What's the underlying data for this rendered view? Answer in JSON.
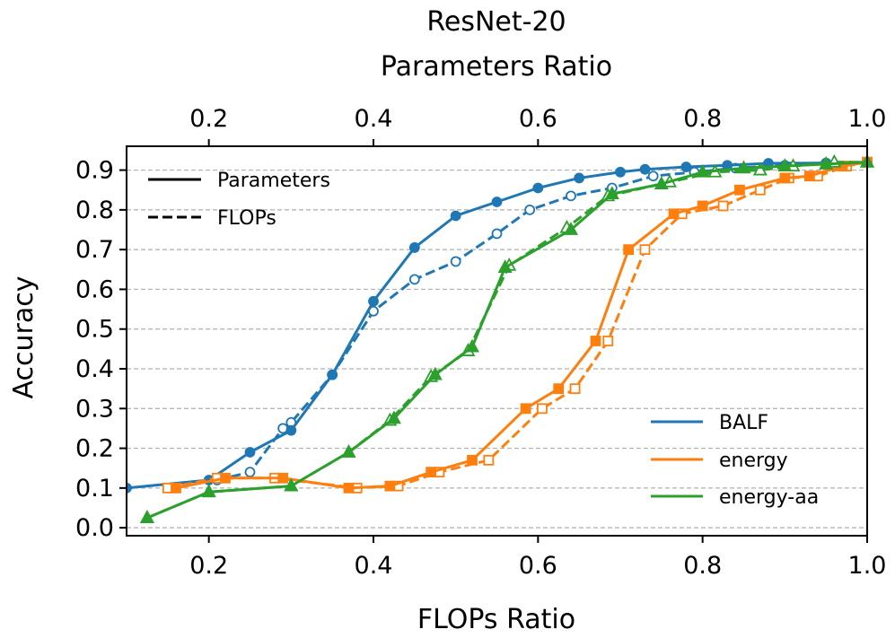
{
  "chart_data": {
    "type": "line",
    "title": "ResNet-20",
    "xlabel": "FLOPs Ratio",
    "x2label": "Parameters Ratio",
    "ylabel": "Accuracy",
    "xlim": [
      0.1,
      1.0
    ],
    "ylim": [
      -0.02,
      0.96
    ],
    "xticks": [
      "0.2",
      "0.4",
      "0.6",
      "0.8",
      "1.0"
    ],
    "x2ticks": [
      "0.2",
      "0.4",
      "0.6",
      "0.8",
      "1.0"
    ],
    "yticks": [
      "0.0",
      "0.1",
      "0.2",
      "0.3",
      "0.4",
      "0.5",
      "0.6",
      "0.7",
      "0.8",
      "0.9"
    ],
    "grid": "horizontal dashed",
    "style_legend": {
      "solid": "Parameters",
      "dashed": "FLOPs",
      "placement": "top-left"
    },
    "series_legend_placement": "bottom-right",
    "series": [
      {
        "name": "BALF",
        "color": "#1f77b4",
        "marker": "circle",
        "parameters": {
          "x": [
            0.1,
            0.2,
            0.25,
            0.3,
            0.35,
            0.4,
            0.45,
            0.5,
            0.55,
            0.6,
            0.65,
            0.7,
            0.73,
            0.78,
            0.83,
            0.88,
            0.95,
            1.0
          ],
          "y": [
            0.1,
            0.12,
            0.19,
            0.245,
            0.385,
            0.57,
            0.705,
            0.785,
            0.82,
            0.855,
            0.88,
            0.895,
            0.902,
            0.908,
            0.912,
            0.917,
            0.918,
            0.92
          ]
        },
        "flops": {
          "x": [
            0.21,
            0.25,
            0.29,
            0.3,
            0.35,
            0.4,
            0.45,
            0.5,
            0.55,
            0.59,
            0.64,
            0.69,
            0.74,
            0.79,
            0.84,
            0.9,
            0.95,
            1.0
          ],
          "y": [
            0.12,
            0.14,
            0.25,
            0.265,
            0.385,
            0.545,
            0.625,
            0.67,
            0.74,
            0.8,
            0.835,
            0.855,
            0.885,
            0.895,
            0.905,
            0.912,
            0.915,
            0.92
          ]
        }
      },
      {
        "name": "energy",
        "color": "#ff7f0e",
        "marker": "square",
        "parameters": {
          "x": [
            0.16,
            0.22,
            0.29,
            0.37,
            0.42,
            0.47,
            0.52,
            0.585,
            0.625,
            0.67,
            0.71,
            0.765,
            0.8,
            0.845,
            0.9,
            0.93,
            0.97,
            1.0
          ],
          "y": [
            0.1,
            0.125,
            0.125,
            0.1,
            0.105,
            0.14,
            0.17,
            0.3,
            0.35,
            0.47,
            0.7,
            0.79,
            0.81,
            0.85,
            0.88,
            0.885,
            0.91,
            0.92
          ]
        },
        "flops": {
          "x": [
            0.15,
            0.21,
            0.28,
            0.38,
            0.43,
            0.48,
            0.54,
            0.605,
            0.645,
            0.685,
            0.73,
            0.775,
            0.825,
            0.87,
            0.905,
            0.94,
            0.975,
            1.0
          ],
          "y": [
            0.1,
            0.125,
            0.125,
            0.1,
            0.105,
            0.14,
            0.17,
            0.3,
            0.35,
            0.47,
            0.7,
            0.79,
            0.81,
            0.85,
            0.88,
            0.885,
            0.91,
            0.92
          ]
        }
      },
      {
        "name": "energy-aa",
        "color": "#2ca02c",
        "marker": "triangle",
        "parameters": {
          "x": [
            0.125,
            0.2,
            0.3,
            0.37,
            0.425,
            0.475,
            0.52,
            0.56,
            0.64,
            0.69,
            0.75,
            0.8,
            0.85,
            0.9,
            0.95,
            1.0
          ],
          "y": [
            0.025,
            0.09,
            0.105,
            0.19,
            0.275,
            0.385,
            0.455,
            0.655,
            0.75,
            0.84,
            0.865,
            0.895,
            0.905,
            0.91,
            0.915,
            0.92
          ]
        },
        "flops": {
          "x": [
            0.125,
            0.2,
            0.3,
            0.37,
            0.42,
            0.47,
            0.515,
            0.565,
            0.635,
            0.685,
            0.76,
            0.815,
            0.87,
            0.91,
            0.96,
            1.0
          ],
          "y": [
            0.025,
            0.09,
            0.105,
            0.19,
            0.27,
            0.38,
            0.445,
            0.66,
            0.755,
            0.835,
            0.87,
            0.895,
            0.9,
            0.91,
            0.92,
            0.92
          ]
        }
      }
    ]
  }
}
